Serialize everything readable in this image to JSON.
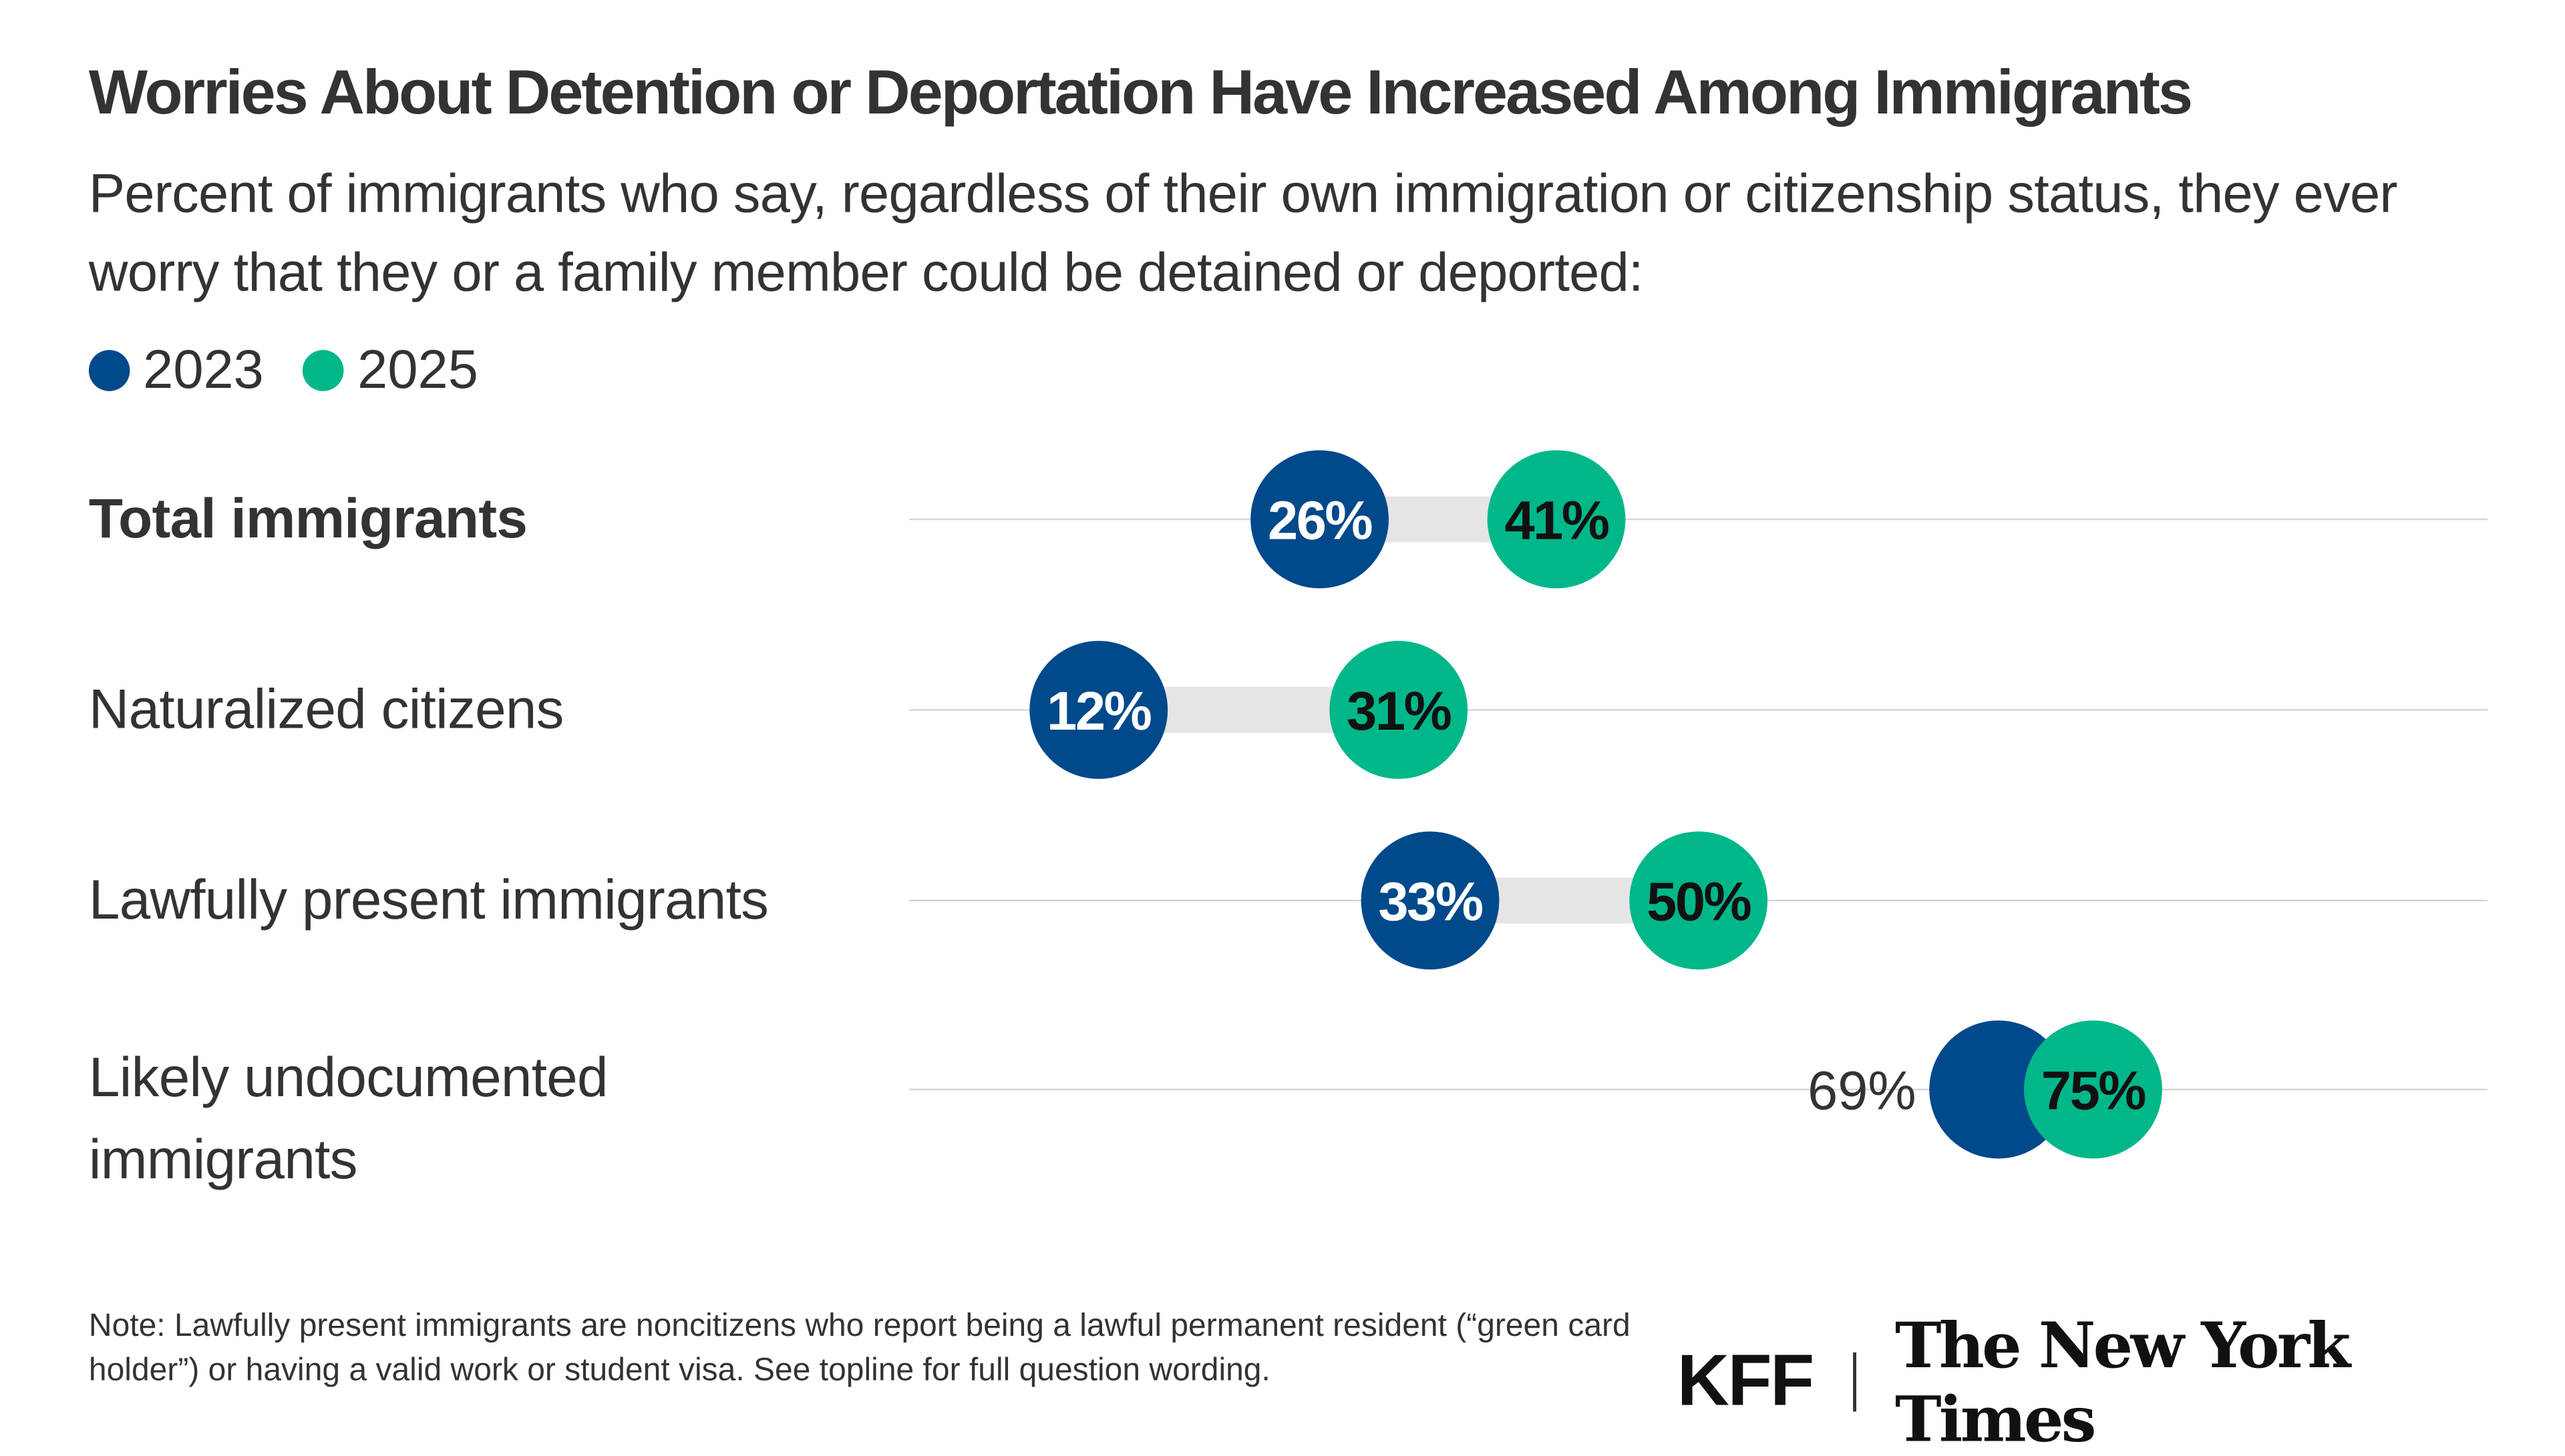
{
  "chart_data": {
    "type": "dumbbell",
    "title": "Worries About Detention or Deportation Have Increased Among Immigrants",
    "subtitle": "Percent of immigrants who say, regardless of their own immigration or citizenship status, they ever worry that they or a family member could be detained or deported:",
    "legend_placement": "top-left",
    "xlim": [
      0,
      100
    ],
    "grid": true,
    "categories": [
      "Total immigrants",
      "Naturalized citizens",
      "Lawfully present immigrants",
      "Likely undocumented immigrants"
    ],
    "series": [
      {
        "name": "2023",
        "color": "#00498a",
        "values": [
          26,
          12,
          33,
          69
        ],
        "labels": [
          "26%",
          "12%",
          "33%",
          "69%"
        ]
      },
      {
        "name": "2025",
        "color": "#00b78a",
        "values": [
          41,
          31,
          50,
          75
        ],
        "labels": [
          "41%",
          "31%",
          "50%",
          "75%"
        ]
      }
    ]
  },
  "row_labels": [
    "Total immigrants",
    "Naturalized citizens",
    "Lawfully present immigrants",
    "Likely undocumented\nimmigrants"
  ],
  "note": "Note: Lawfully present immigrants are noncitizens who report being a lawful permanent resident (“green card holder”) or having a valid work or student visa. See topline for full question wording.",
  "logos": {
    "kff": "KFF",
    "nyt": "The New York Times"
  },
  "colors": {
    "bar": "#e5e5e5",
    "grid": "#d6d6d6",
    "text": "#333333"
  }
}
